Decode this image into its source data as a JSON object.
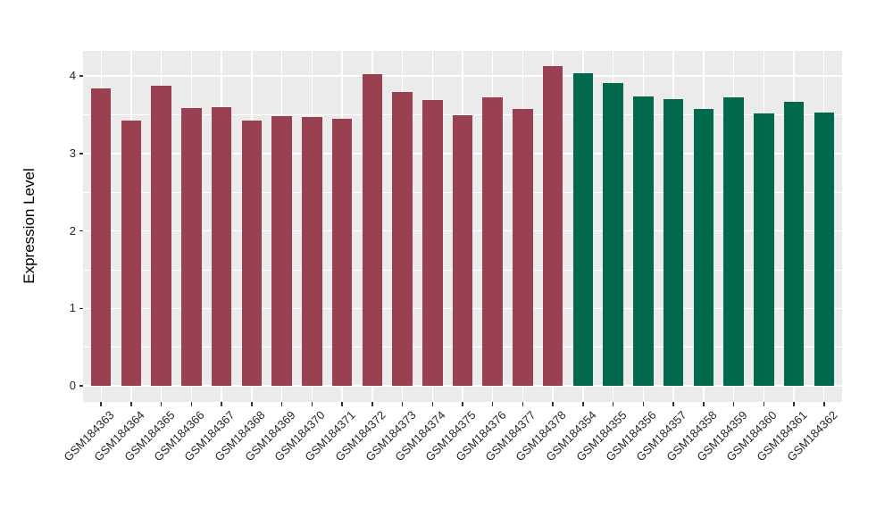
{
  "chart_data": {
    "type": "bar",
    "title": "",
    "xlabel": "",
    "ylabel": "Expression Level",
    "ylim": [
      0,
      4.33
    ],
    "yticks": [
      0,
      1,
      2,
      3,
      4
    ],
    "ytick_labels": [
      "0",
      "1",
      "2",
      "3",
      "4"
    ],
    "y_minor_gridlines": [
      0.5,
      1.5,
      2.5,
      3.5
    ],
    "grid": "white major+minor horizontal, white vertical at each category",
    "legend_position": "none",
    "colors": {
      "group_a": "#994150",
      "group_b": "#02694D",
      "panel_background": "#EBEBEB",
      "figure_background": "#FFFFFF",
      "gridline": "#FFFFFF",
      "tick_mark": "#333333",
      "tick_text": "#262626"
    },
    "bars": [
      {
        "label": "GSM184363",
        "value": 3.84,
        "group": "group_a"
      },
      {
        "label": "GSM184364",
        "value": 3.43,
        "group": "group_a"
      },
      {
        "label": "GSM184365",
        "value": 3.87,
        "group": "group_a"
      },
      {
        "label": "GSM184366",
        "value": 3.59,
        "group": "group_a"
      },
      {
        "label": "GSM184367",
        "value": 3.6,
        "group": "group_a"
      },
      {
        "label": "GSM184368",
        "value": 3.43,
        "group": "group_a"
      },
      {
        "label": "GSM184369",
        "value": 3.48,
        "group": "group_a"
      },
      {
        "label": "GSM184370",
        "value": 3.47,
        "group": "group_a"
      },
      {
        "label": "GSM184371",
        "value": 3.45,
        "group": "group_a"
      },
      {
        "label": "GSM184372",
        "value": 4.02,
        "group": "group_a"
      },
      {
        "label": "GSM184373",
        "value": 3.8,
        "group": "group_a"
      },
      {
        "label": "GSM184374",
        "value": 3.69,
        "group": "group_a"
      },
      {
        "label": "GSM184375",
        "value": 3.5,
        "group": "group_a"
      },
      {
        "label": "GSM184376",
        "value": 3.73,
        "group": "group_a"
      },
      {
        "label": "GSM184377",
        "value": 3.57,
        "group": "group_a"
      },
      {
        "label": "GSM184378",
        "value": 4.13,
        "group": "group_a"
      },
      {
        "label": "GSM184354",
        "value": 4.04,
        "group": "group_b"
      },
      {
        "label": "GSM184355",
        "value": 3.91,
        "group": "group_b"
      },
      {
        "label": "GSM184356",
        "value": 3.74,
        "group": "group_b"
      },
      {
        "label": "GSM184357",
        "value": 3.7,
        "group": "group_b"
      },
      {
        "label": "GSM184358",
        "value": 3.58,
        "group": "group_b"
      },
      {
        "label": "GSM184359",
        "value": 3.72,
        "group": "group_b"
      },
      {
        "label": "GSM184360",
        "value": 3.52,
        "group": "group_b"
      },
      {
        "label": "GSM184361",
        "value": 3.67,
        "group": "group_b"
      },
      {
        "label": "GSM184362",
        "value": 3.53,
        "group": "group_b"
      }
    ]
  }
}
